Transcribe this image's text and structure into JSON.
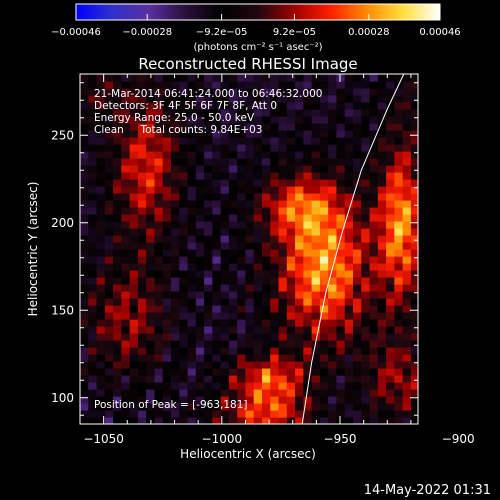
{
  "chart_data": {
    "type": "heatmap",
    "title": "Reconstructed RHESSI Image",
    "xlabel": "Heliocentric X (arcsec)",
    "ylabel": "Heliocentric Y (arcsec)",
    "xlim": [
      -1060,
      -917
    ],
    "ylim": [
      85,
      285
    ],
    "xticks": [
      -1050,
      -1000,
      -950,
      -900
    ],
    "yticks": [
      100,
      150,
      200,
      250
    ],
    "colorbar": {
      "label": "(photons cm⁻² s⁻¹ asec⁻²)",
      "range": [
        -0.00046,
        0.00046
      ],
      "ticks": [
        -0.00046,
        -0.00028,
        -9.2e-05,
        9.2e-05,
        0.00028,
        0.00046
      ],
      "tick_labels": [
        "−0.00046",
        "−0.00028",
        "−9.2e−05",
        "9.2e−05",
        "0.00028",
        "0.00046"
      ],
      "orientation": "horizontal",
      "placement": "top"
    },
    "annotations": [
      "21-Mar-2014 06:41:24.000 to 06:46:32.000",
      "Detectors: 3F 4F 5F 6F 7F 8F, Att 0",
      "Energy Range: 25.0 - 50.0 keV",
      "Clean     Total counts: 9.84E+03"
    ],
    "peak_text": "Position of Peak = [-963,181]",
    "peak": {
      "x": -963,
      "y": 181
    },
    "limb_x_at_y": [
      [
        -966,
        85
      ],
      [
        -962,
        120
      ],
      [
        -956,
        160
      ],
      [
        -949,
        195
      ],
      [
        -941,
        230
      ],
      [
        -930,
        265
      ],
      [
        -923,
        285
      ]
    ],
    "sources": [
      {
        "x": -957,
        "y": 175,
        "amp": 0.00042,
        "sx": 14,
        "sy": 30
      },
      {
        "x": -968,
        "y": 210,
        "amp": 0.00024,
        "sx": 12,
        "sy": 12
      },
      {
        "x": -1032,
        "y": 232,
        "amp": 0.00028,
        "sx": 10,
        "sy": 30
      },
      {
        "x": -1040,
        "y": 145,
        "amp": 0.0002,
        "sx": 12,
        "sy": 22
      },
      {
        "x": -980,
        "y": 110,
        "amp": 0.00034,
        "sx": 11,
        "sy": 10
      },
      {
        "x": -982,
        "y": 90,
        "amp": 0.00028,
        "sx": 14,
        "sy": 8
      },
      {
        "x": -924,
        "y": 200,
        "amp": 0.0004,
        "sx": 7,
        "sy": 32
      },
      {
        "x": -925,
        "y": 110,
        "amp": 0.0002,
        "sx": 10,
        "sy": 16
      },
      {
        "x": -900,
        "y": 270,
        "amp": 0.00014,
        "sx": 16,
        "sy": 14
      },
      {
        "x": -1055,
        "y": 275,
        "amp": 0.00012,
        "sx": 10,
        "sy": 10
      }
    ],
    "color_hex": {
      "cmap": [
        "#0000ff",
        "#3030cc",
        "#5a2fa0",
        "#2b0f3a",
        "#000000",
        "#200810",
        "#a00000",
        "#ff2000",
        "#ff8c00",
        "#ffe040",
        "#ffffff"
      ],
      "limb": "#ffffff",
      "text": "#ffffff",
      "background": "#000000"
    }
  },
  "footer": {
    "timestamp": "14-May-2022 01:31"
  }
}
